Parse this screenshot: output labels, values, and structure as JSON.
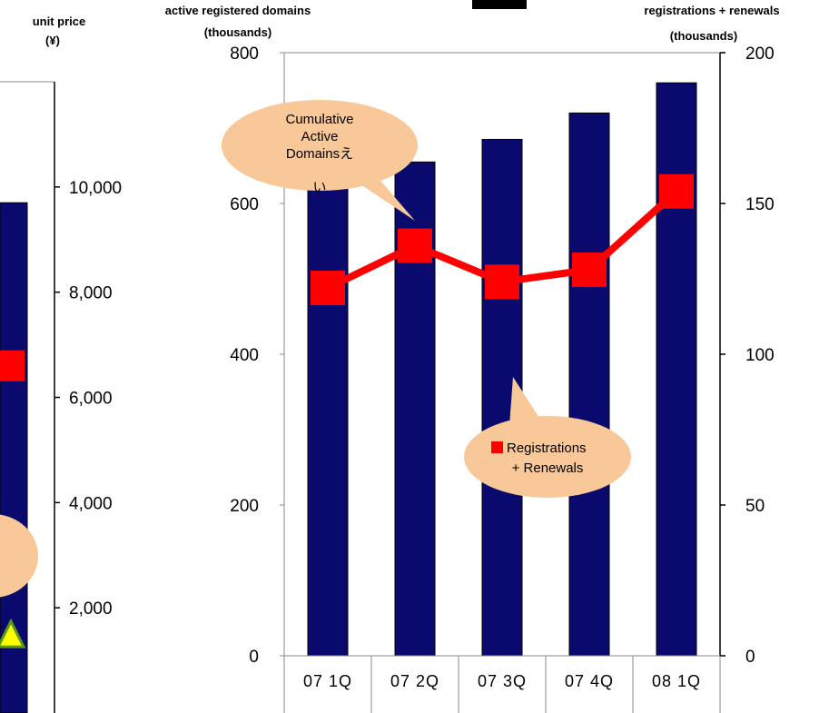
{
  "left_panel": {
    "title_line1": "unit price",
    "title_line2": "(¥)",
    "ticks": [
      "10,000",
      "8,000",
      "6,000",
      "4,000",
      "2,000"
    ],
    "tick_values": [
      10000,
      8000,
      6000,
      4000,
      2000
    ],
    "ylim": [
      0,
      12000
    ],
    "partial_bar_value": 9700,
    "red_marker_value": 6600,
    "triangle_marker_value": 1500,
    "colors": {
      "bar": "#0a0a6e",
      "red": "#ff0000",
      "triangle": "#ffff00",
      "triangle_edge": "#5a9a1a",
      "callout": "#f8c898"
    }
  },
  "chart_data": {
    "type": "bar",
    "categories": [
      "07 1Q",
      "07 2Q",
      "07 3Q",
      "07 4Q",
      "08 1Q"
    ],
    "series": [
      {
        "name": "Cumulative Active Domainsえい",
        "type": "bar",
        "axis": "left",
        "values": [
          640,
          655,
          685,
          720,
          760
        ]
      },
      {
        "name": "Registrations + Renewals",
        "type": "line",
        "axis": "right",
        "values": [
          122,
          136,
          124,
          128,
          154
        ]
      }
    ],
    "ylabel_left_line1": "active registered domains",
    "ylabel_left_line2": "(thousands)",
    "ylabel_right_line1": "registrations + renewals",
    "ylabel_right_line2": "(thousands)",
    "ylim_left": [
      0,
      800
    ],
    "ylim_right": [
      0,
      200
    ],
    "yticks_left": [
      "0",
      "200",
      "400",
      "600",
      "800"
    ],
    "yticks_left_values": [
      0,
      200,
      400,
      600,
      800
    ],
    "yticks_right": [
      "0",
      "50",
      "100",
      "150",
      "200"
    ],
    "yticks_right_values": [
      0,
      50,
      100,
      150,
      200
    ],
    "callouts": {
      "domains": [
        "Cumulative",
        "Active",
        "Domainsえ",
        "い"
      ],
      "registrations": [
        "Registrations",
        "+ Renewals"
      ]
    },
    "colors": {
      "bar": "#0a0a6e",
      "line": "#ff0000",
      "callout": "#f8c898"
    },
    "legend": "callouts",
    "grid": false
  }
}
